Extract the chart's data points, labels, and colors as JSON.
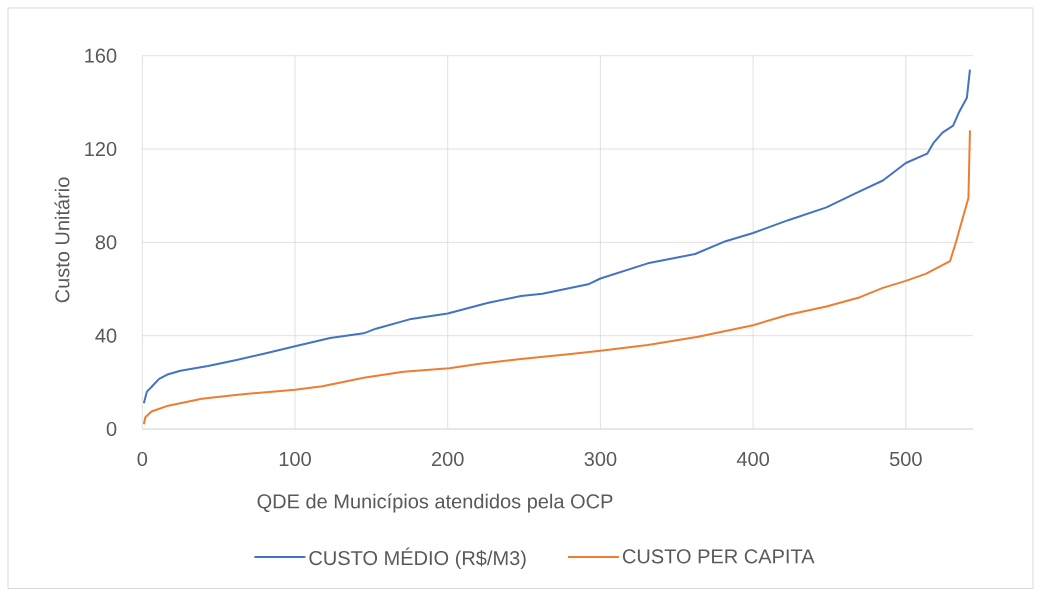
{
  "chart_data": {
    "type": "line",
    "xlabel": "QDE de Municípios atendidos pela OCP",
    "ylabel": "Custo Unitário",
    "xlim": [
      0,
      544
    ],
    "xticks": [
      0,
      100,
      200,
      300,
      400,
      500
    ],
    "ylim": [
      0,
      160
    ],
    "yticks": [
      0,
      40,
      80,
      120,
      160
    ],
    "grid": true,
    "legend": "bottom",
    "series": [
      {
        "name": "CUSTO MÉDIO (R$/M3)",
        "color": "#4472c4",
        "x": [
          1,
          3,
          6,
          11,
          17,
          25,
          43,
          61,
          81,
          100,
          123,
          145,
          153,
          175,
          200,
          226,
          248,
          262,
          292,
          300,
          331,
          362,
          382,
          400,
          423,
          448,
          467,
          485,
          500,
          514,
          518,
          524,
          531,
          535,
          540,
          542
        ],
        "values": [
          11,
          16,
          18,
          21.5,
          23.5,
          25,
          27,
          29.5,
          32.5,
          35.5,
          39,
          41,
          43,
          47,
          49.5,
          54,
          57,
          58,
          62,
          64.5,
          71,
          75,
          80.5,
          84,
          89.5,
          95,
          101,
          106.5,
          114,
          118,
          122.5,
          127,
          130,
          136,
          142,
          154
        ]
      },
      {
        "name": "CUSTO PER CAPITA",
        "color": "#ed7d31",
        "x": [
          1,
          2,
          6,
          17,
          39,
          61,
          83,
          100,
          118,
          145,
          171,
          201,
          221,
          248,
          279,
          300,
          331,
          364,
          400,
          423,
          448,
          470,
          485,
          500,
          513,
          529,
          533,
          537.5,
          541,
          542
        ],
        "values": [
          2,
          5,
          7.5,
          10,
          13,
          14.6,
          15.9,
          16.8,
          18.3,
          22,
          24.5,
          26,
          28,
          30,
          32,
          33.5,
          36,
          39.5,
          44.5,
          49,
          52.5,
          56.5,
          60.5,
          63.5,
          66.5,
          72,
          80.5,
          91,
          99,
          128
        ]
      }
    ]
  }
}
